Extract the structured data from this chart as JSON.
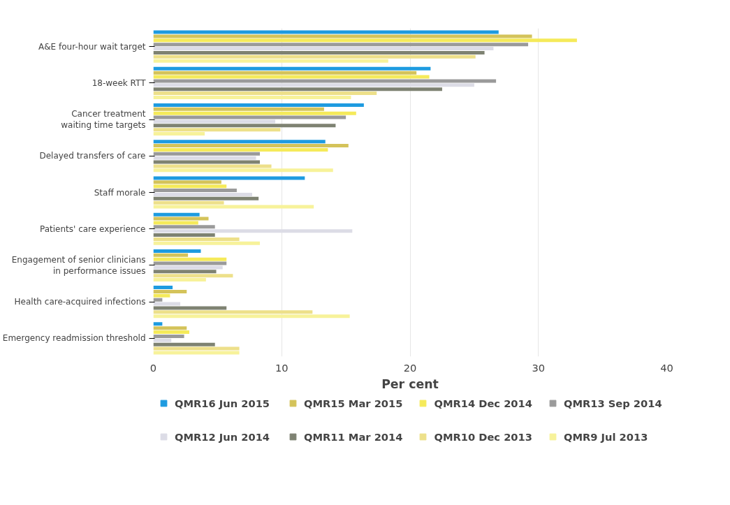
{
  "chart_data": {
    "type": "bar",
    "orientation": "horizontal",
    "xlabel": "Per cent",
    "categories": [
      "A&E four-hour wait target",
      "18-week RTT",
      "Cancer treatment waiting time targets",
      "Delayed transfers of care",
      "Staff morale",
      "Patients' care experience",
      "Engagement of senior clinicians in performance issues",
      "Health care-acquired infections",
      "Emergency readmission threshold"
    ],
    "series": [
      {
        "name": "QMR16 Jun 2015",
        "color": "#1e9be0",
        "values": [
          26.9,
          21.6,
          16.4,
          13.4,
          11.8,
          3.6,
          3.7,
          1.5,
          0.7
        ]
      },
      {
        "name": "QMR15 Mar 2015",
        "color": "#d4c35a",
        "values": [
          29.5,
          20.5,
          13.3,
          15.2,
          5.3,
          4.3,
          2.7,
          2.6,
          2.6
        ]
      },
      {
        "name": "QMR14 Dec 2014",
        "color": "#f5ea5a",
        "values": [
          33.0,
          21.5,
          15.8,
          13.6,
          5.7,
          3.5,
          5.7,
          1.3,
          2.8
        ]
      },
      {
        "name": "QMR13 Sep 2014",
        "color": "#9a9a9a",
        "values": [
          29.2,
          26.7,
          15.0,
          8.3,
          6.5,
          4.8,
          5.7,
          0.7,
          2.4
        ]
      },
      {
        "name": "QMR12 Jun 2014",
        "color": "#dcdce6",
        "values": [
          26.5,
          25.0,
          9.5,
          8.0,
          7.7,
          15.5,
          5.4,
          2.1,
          1.4
        ]
      },
      {
        "name": "QMR11 Mar 2014",
        "color": "#7e8272",
        "values": [
          25.8,
          22.5,
          14.2,
          8.3,
          8.2,
          4.8,
          4.9,
          5.7,
          4.8
        ]
      },
      {
        "name": "QMR10 Dec 2013",
        "color": "#ede08a",
        "values": [
          25.1,
          17.4,
          9.9,
          9.2,
          5.5,
          6.7,
          6.2,
          12.4,
          6.7
        ]
      },
      {
        "name": "QMR9 Jul 2013",
        "color": "#f7f29a",
        "values": [
          18.3,
          15.4,
          4.0,
          14.0,
          12.5,
          8.3,
          4.1,
          15.3,
          6.7
        ]
      }
    ],
    "xlim": [
      0,
      40
    ],
    "xticks": [
      0,
      10,
      20,
      30,
      40
    ],
    "grid": "x",
    "legend": "bottom"
  }
}
